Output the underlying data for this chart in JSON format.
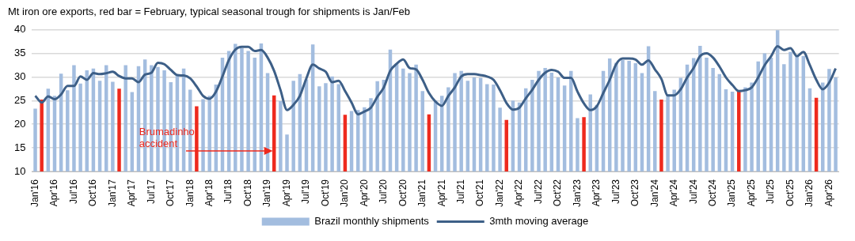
{
  "chart_data": {
    "type": "bar",
    "title": "Mt iron ore exports, red bar = February, typical seasonal trough for shipments is Jan/Feb",
    "categories": [
      "Jan'16",
      null,
      null,
      "Apr'16",
      null,
      null,
      "Jul'16",
      null,
      null,
      "Oct'16",
      null,
      null,
      "Jan'17",
      null,
      null,
      "Apr'17",
      null,
      null,
      "Jul'17",
      null,
      null,
      "Oct'17",
      null,
      null,
      "Jan'18",
      null,
      null,
      "Apr'18",
      null,
      null,
      "Jul'18",
      null,
      null,
      "Oct'18",
      null,
      null,
      "Jan'19",
      null,
      null,
      "Apr'19",
      null,
      null,
      "Jul'19",
      null,
      null,
      "Oct'19",
      null,
      null,
      "Jan'20",
      null,
      null,
      "Apr'20",
      null,
      null,
      "Jul'20",
      null,
      null,
      "Oct'20",
      null,
      null,
      "Jan'21",
      null,
      null,
      "Apr'21",
      null,
      null,
      "Jul'21",
      null,
      null,
      "Oct'21",
      null,
      null,
      "Jan'22",
      null,
      null,
      "Apr'22",
      null,
      null,
      "Jul'22",
      null,
      null,
      "Oct'22",
      null,
      null,
      "Jan'23",
      null,
      null,
      "Apr'23",
      null,
      null,
      "Jul'23",
      null,
      null,
      "Oct'23",
      null,
      null,
      "Jan'24",
      null,
      null,
      "Apr'24",
      null,
      null,
      "Jul'24",
      null,
      null,
      "Oct'24",
      null,
      null,
      "Jan'25",
      null,
      null,
      "Apr'25",
      null,
      null,
      "Jul'25",
      null,
      null,
      "Oct'25",
      null,
      null,
      "Jan'26",
      null,
      null,
      "Apr'26",
      null
    ],
    "series": [
      {
        "name": "Brazil monthly shipments",
        "color": "#a3bddf",
        "colors": [
          "#a3bddf",
          "#ee2a1e",
          "#a3bddf",
          "#a3bddf",
          "#a3bddf",
          "#a3bddf",
          "#a3bddf",
          "#a3bddf",
          "#a3bddf",
          "#a3bddf",
          "#a3bddf",
          "#a3bddf",
          "#a3bddf",
          "#ee2a1e",
          "#a3bddf",
          "#a3bddf",
          "#a3bddf",
          "#a3bddf",
          "#a3bddf",
          "#a3bddf",
          "#a3bddf",
          "#a3bddf",
          "#a3bddf",
          "#a3bddf",
          "#a3bddf",
          "#ee2a1e",
          "#a3bddf",
          "#a3bddf",
          "#a3bddf",
          "#a3bddf",
          "#a3bddf",
          "#a3bddf",
          "#a3bddf",
          "#a3bddf",
          "#a3bddf",
          "#a3bddf",
          "#a3bddf",
          "#ee2a1e",
          "#a3bddf",
          "#a3bddf",
          "#a3bddf",
          "#a3bddf",
          "#a3bddf",
          "#a3bddf",
          "#a3bddf",
          "#a3bddf",
          "#a3bddf",
          "#a3bddf",
          "#ee2a1e",
          "#a3bddf",
          "#a3bddf",
          "#a3bddf",
          "#a3bddf",
          "#a3bddf",
          "#a3bddf",
          "#a3bddf",
          "#a3bddf",
          "#a3bddf",
          "#a3bddf",
          "#a3bddf",
          "#a3bddf",
          "#ee2a1e",
          "#a3bddf",
          "#a3bddf",
          "#a3bddf",
          "#a3bddf",
          "#a3bddf",
          "#a3bddf",
          "#a3bddf",
          "#a3bddf",
          "#a3bddf",
          "#a3bddf",
          "#a3bddf",
          "#ee2a1e",
          "#a3bddf",
          "#a3bddf",
          "#a3bddf",
          "#a3bddf",
          "#a3bddf",
          "#a3bddf",
          "#a3bddf",
          "#a3bddf",
          "#a3bddf",
          "#a3bddf",
          "#a3bddf",
          "#ee2a1e",
          "#a3bddf",
          "#a3bddf",
          "#a3bddf",
          "#a3bddf",
          "#a3bddf",
          "#a3bddf",
          "#a3bddf",
          "#a3bddf",
          "#a3bddf",
          "#a3bddf",
          "#a3bddf",
          "#ee2a1e",
          "#a3bddf",
          "#a3bddf",
          "#a3bddf",
          "#a3bddf",
          "#a3bddf",
          "#a3bddf",
          "#a3bddf",
          "#a3bddf",
          "#a3bddf",
          "#a3bddf",
          "#a3bddf",
          "#ee2a1e",
          "#a3bddf",
          "#a3bddf",
          "#a3bddf",
          "#a3bddf",
          "#a3bddf",
          "#a3bddf",
          "#a3bddf",
          "#a3bddf",
          "#a3bddf",
          "#a3bddf",
          "#a3bddf",
          "#ee2a1e",
          "#a3bddf",
          "#a3bddf",
          "#a3bddf"
        ],
        "values": [
          23.3,
          25.2,
          27.5,
          26.0,
          30.7,
          27.2,
          32.5,
          28.6,
          31.4,
          31.8,
          29.2,
          32.5,
          29.0,
          27.5,
          32.5,
          26.8,
          32.3,
          33.7,
          32.5,
          32.1,
          31.4,
          28.9,
          30.3,
          31.8,
          27.3,
          23.8,
          25.3,
          26.0,
          28.4,
          34.1,
          35.5,
          37.0,
          36.1,
          35.5,
          34.1,
          37.1,
          30.8,
          26.1,
          24.9,
          17.8,
          29.2,
          30.6,
          29.5,
          36.9,
          28.0,
          28.7,
          30.1,
          28.5,
          22.0,
          22.8,
          23.0,
          23.6,
          25.5,
          29.1,
          29.4,
          35.8,
          32.7,
          31.8,
          30.8,
          32.6,
          27.0,
          22.1,
          25.0,
          26.0,
          27.8,
          30.8,
          31.3,
          29.2,
          29.9,
          29.8,
          28.5,
          28.4,
          23.5,
          20.9,
          25.0,
          24.6,
          27.6,
          29.4,
          31.3,
          31.9,
          30.9,
          29.9,
          28.2,
          31.3,
          21.3,
          21.5,
          26.3,
          24.1,
          31.3,
          33.9,
          33.0,
          33.6,
          33.4,
          32.9,
          30.8,
          36.5,
          27.0,
          25.2,
          26.3,
          27.3,
          29.8,
          32.6,
          34.0,
          36.6,
          34.1,
          31.9,
          30.6,
          27.4,
          26.9,
          26.9,
          27.8,
          28.8,
          33.3,
          35.0,
          34.1,
          39.9,
          32.7,
          35.3,
          34.4,
          34.4,
          27.6,
          25.6,
          28.8,
          31.7,
          29.9
        ]
      },
      {
        "name": "3mth moving average",
        "type": "line",
        "color": "#3d5f87",
        "values": [
          26.0,
          24.6,
          25.9,
          25.3,
          26.3,
          28.1,
          28.1,
          30.1,
          29.4,
          30.8,
          30.6,
          30.8,
          31.1,
          30.2,
          29.7,
          29.7,
          28.9,
          30.5,
          30.9,
          33.0,
          32.7,
          31.5,
          30.4,
          30.3,
          29.7,
          28.0,
          26.0,
          25.4,
          26.9,
          30.1,
          33.6,
          35.8,
          36.4,
          36.4,
          35.5,
          35.7,
          34.1,
          31.3,
          27.2,
          23.0,
          24.1,
          26.0,
          29.7,
          32.6,
          31.8,
          31.1,
          28.9,
          29.2,
          27.0,
          24.6,
          22.1,
          22.7,
          23.5,
          25.8,
          27.8,
          31.3,
          32.8,
          33.7,
          31.9,
          31.6,
          29.4,
          26.6,
          24.8,
          23.9,
          26.0,
          27.8,
          30.1,
          30.6,
          30.6,
          30.4,
          30.1,
          29.4,
          27.2,
          24.5,
          23.1,
          23.5,
          25.5,
          27.3,
          29.4,
          30.9,
          31.5,
          31.1,
          29.8,
          29.8,
          26.9,
          24.4,
          23.0,
          23.8,
          26.6,
          29.4,
          32.7,
          33.9,
          33.9,
          33.7,
          32.6,
          33.5,
          31.6,
          29.6,
          26.1,
          26.1,
          27.4,
          29.9,
          31.9,
          34.4,
          35.0,
          34.1,
          32.2,
          29.9,
          28.3,
          27.0,
          27.2,
          27.8,
          29.9,
          32.5,
          34.4,
          36.5,
          35.7,
          36.1,
          34.4,
          35.3,
          32.5,
          29.4,
          27.4,
          28.8,
          31.8
        ]
      }
    ],
    "ylim": [
      10,
      40
    ],
    "yticks": [
      10,
      15,
      20,
      25,
      30,
      35,
      40
    ],
    "grid": "y",
    "legend": "bottom",
    "annotations": [
      {
        "text": "Brumadinho\naccident",
        "y": 14.3
      }
    ]
  }
}
